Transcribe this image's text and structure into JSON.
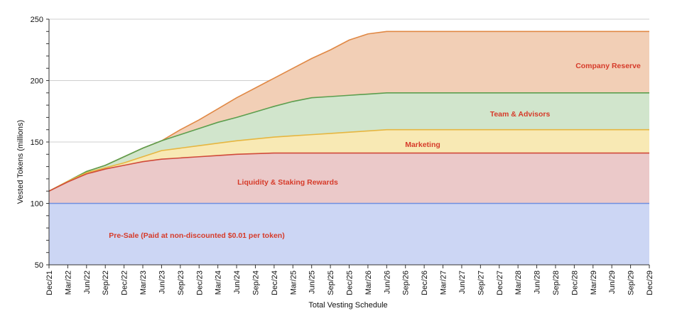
{
  "chart_data": {
    "type": "area",
    "title": "",
    "xlabel": "Total Vesting Schedule",
    "ylabel": "Vested Tokens (millions)",
    "ylim": [
      50,
      250
    ],
    "yticks": [
      50,
      100,
      150,
      200,
      250
    ],
    "grid": true,
    "x": [
      "Dec/21",
      "Mar/22",
      "Jun/22",
      "Sep/22",
      "Dec/22",
      "Mar/23",
      "Jun/23",
      "Sep/23",
      "Dec/23",
      "Mar/24",
      "Jun/24",
      "Sep/24",
      "Dec/24",
      "Mar/25",
      "Jun/25",
      "Sep/25",
      "Dec/25",
      "Mar/26",
      "Jun/26",
      "Sep/26",
      "Dec/26",
      "Mar/27",
      "Jun/27",
      "Sep/27",
      "Dec/27",
      "Mar/28",
      "Jun/28",
      "Sep/28",
      "Dec/28",
      "Mar/29",
      "Jun/29",
      "Sep/29",
      "Dec/29"
    ],
    "series": [
      {
        "name": "Pre-Sale (Paid at non-discounted $0.01 per token)",
        "fill": "#ccd6f4",
        "stroke": "#6e8fe0",
        "values": [
          100,
          100,
          100,
          100,
          100,
          100,
          100,
          100,
          100,
          100,
          100,
          100,
          100,
          100,
          100,
          100,
          100,
          100,
          100,
          100,
          100,
          100,
          100,
          100,
          100,
          100,
          100,
          100,
          100,
          100,
          100,
          100,
          100
        ]
      },
      {
        "name": "Liquidity & Staking Rewards",
        "fill": "#ebc9c9",
        "stroke": "#d04a3a",
        "values": [
          110,
          117.5,
          124,
          128,
          131,
          134,
          136,
          137,
          138,
          139,
          140,
          140.5,
          141,
          141,
          141,
          141,
          141,
          141,
          141,
          141,
          141,
          141,
          141,
          141,
          141,
          141,
          141,
          141,
          141,
          141,
          141,
          141,
          141
        ]
      },
      {
        "name": "Marketing",
        "fill": "#f8e9b4",
        "stroke": "#e6b640",
        "values": [
          110,
          118,
          125,
          129,
          133,
          138,
          143,
          145,
          147,
          149,
          151,
          152.5,
          154,
          155,
          156,
          157,
          158,
          159,
          160,
          160,
          160,
          160,
          160,
          160,
          160,
          160,
          160,
          160,
          160,
          160,
          160,
          160,
          160
        ]
      },
      {
        "name": "Team & Advisors",
        "fill": "#d1e5cc",
        "stroke": "#5c9e4e",
        "values": [
          110,
          118,
          126,
          131,
          138,
          145,
          151,
          156,
          161,
          166,
          170,
          174.5,
          179,
          183,
          186,
          187,
          188,
          189,
          190,
          190,
          190,
          190,
          190,
          190,
          190,
          190,
          190,
          190,
          190,
          190,
          190,
          190,
          190
        ]
      },
      {
        "name": "Company Reserve",
        "fill": "#f2cfb6",
        "stroke": "#e08844",
        "values": [
          110,
          118,
          126,
          131,
          138,
          145,
          151,
          160,
          168,
          177,
          186,
          194,
          202,
          210,
          218,
          225,
          233,
          238,
          240,
          240,
          240,
          240,
          240,
          240,
          240,
          240,
          240,
          240,
          240,
          240,
          240,
          240,
          240
        ]
      }
    ],
    "annotations": [
      {
        "text": "Company Reserve",
        "series": 4
      },
      {
        "text": "Team & Advisors",
        "series": 3
      },
      {
        "text": "Marketing",
        "series": 2
      },
      {
        "text": "Liquidity & Staking Rewards",
        "series": 1
      },
      {
        "text": "Pre-Sale (Paid at non-discounted $0.01 per token)",
        "series": 0
      }
    ]
  }
}
